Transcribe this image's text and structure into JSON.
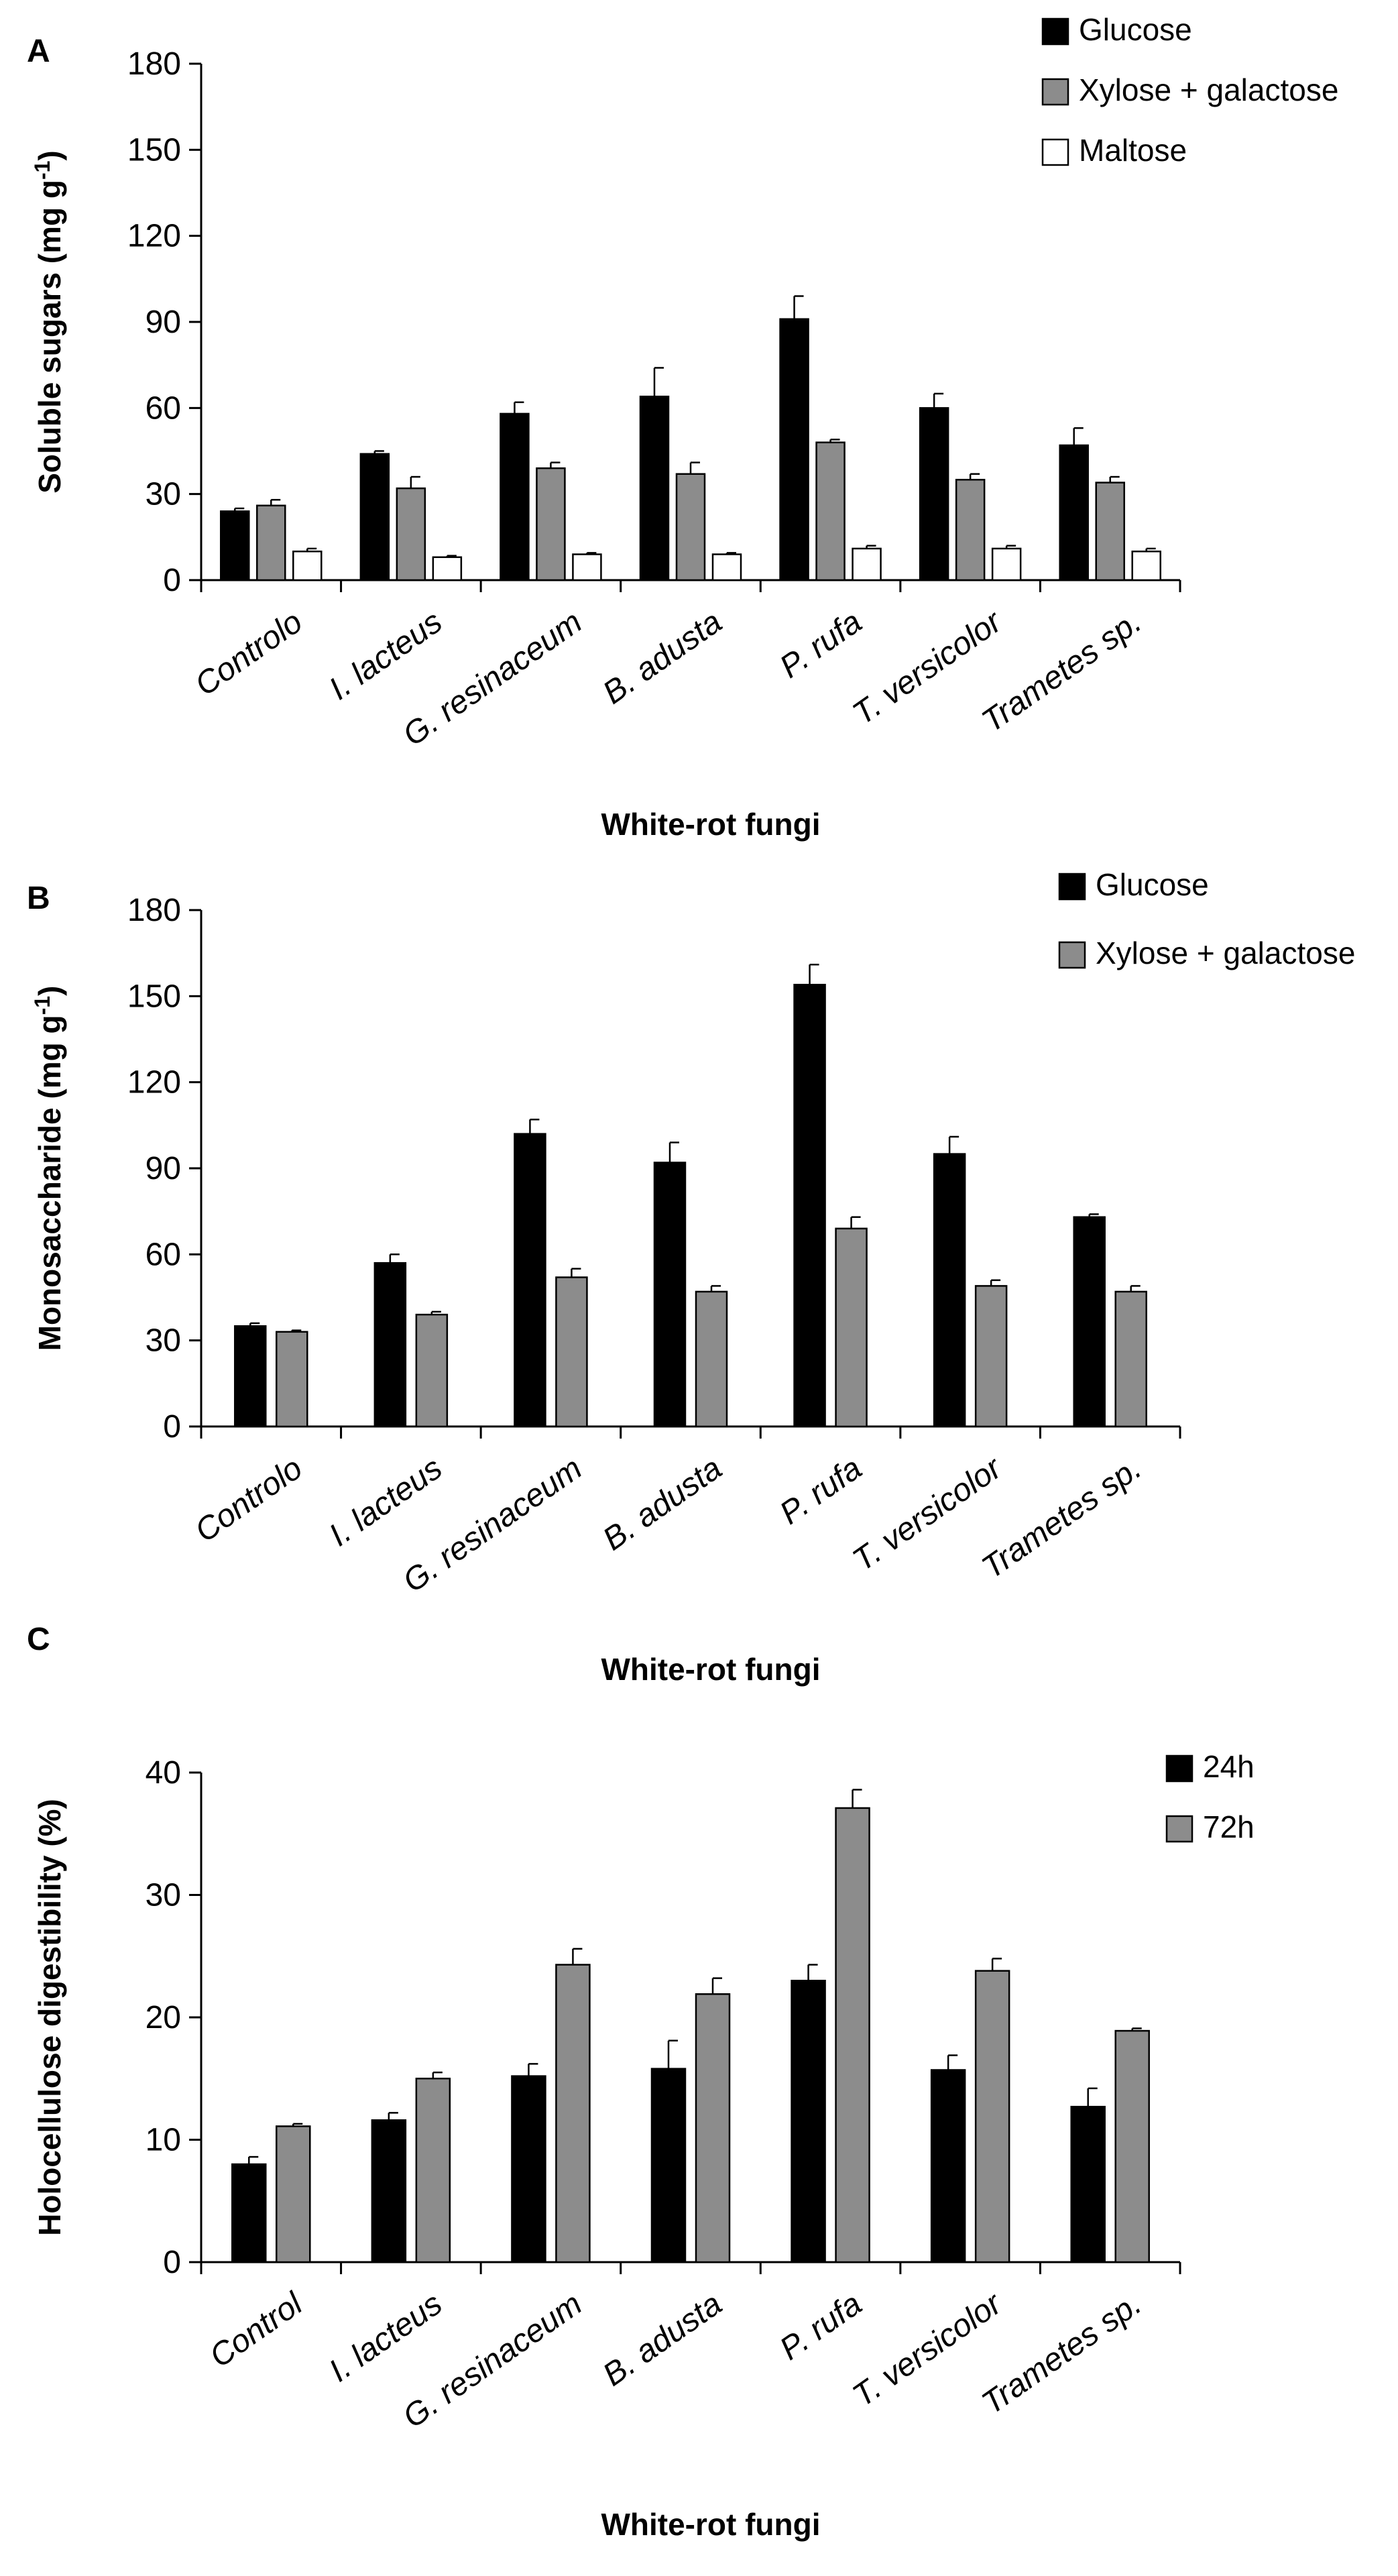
{
  "chart_data": [
    {
      "panel": "A",
      "type": "bar",
      "title": "",
      "xlabel": "White-rot fungi",
      "ylabel": "Soluble sugars (mg g-1)",
      "ylabel_main": "Soluble sugars (mg g",
      "ylabel_sup": "-1",
      "ylabel_end": ")",
      "ylim": [
        0,
        180
      ],
      "yticks": [
        0,
        30,
        60,
        90,
        120,
        150,
        180
      ],
      "categories": [
        "Controlo",
        "I. lacteus",
        "G. resinaceum",
        "B. adusta",
        "P. rufa",
        "T. versicolor",
        "Trametes sp."
      ],
      "series": [
        {
          "name": "Glucose",
          "color": "#000000",
          "values": [
            24,
            44,
            58,
            64,
            91,
            60,
            47
          ],
          "errors": [
            1,
            1,
            4,
            10,
            8,
            5,
            6
          ]
        },
        {
          "name": "Xylose + galactose",
          "color": "#8c8c8c",
          "values": [
            26,
            32,
            39,
            37,
            48,
            35,
            34
          ],
          "errors": [
            2,
            4,
            2,
            4,
            1,
            2,
            2
          ]
        },
        {
          "name": "Maltose",
          "color": "#ffffff",
          "values": [
            10,
            8,
            9,
            9,
            11,
            11,
            10
          ],
          "errors": [
            1,
            0.5,
            0.5,
            0.5,
            1,
            1,
            1
          ]
        }
      ],
      "legend": "top-right"
    },
    {
      "panel": "B",
      "type": "bar",
      "title": "",
      "xlabel": "White-rot fungi",
      "ylabel": "Monosaccharide (mg g-1)",
      "ylabel_main": "Monosaccharide (mg g",
      "ylabel_sup": "-1",
      "ylabel_end": ")",
      "ylim": [
        0,
        180
      ],
      "yticks": [
        0,
        30,
        60,
        90,
        120,
        150,
        180
      ],
      "categories": [
        "Controlo",
        "I. lacteus",
        "G. resinaceum",
        "B. adusta",
        "P. rufa",
        "T. versicolor",
        "Trametes sp."
      ],
      "series": [
        {
          "name": "Glucose",
          "color": "#000000",
          "values": [
            35,
            57,
            102,
            92,
            154,
            95,
            73
          ],
          "errors": [
            1,
            3,
            5,
            7,
            7,
            6,
            1
          ]
        },
        {
          "name": "Xylose + galactose",
          "color": "#8c8c8c",
          "values": [
            33,
            39,
            52,
            47,
            69,
            49,
            47
          ],
          "errors": [
            0.5,
            1,
            3,
            2,
            4,
            2,
            2
          ]
        }
      ],
      "legend": "top-right"
    },
    {
      "panel": "C",
      "type": "bar",
      "title": "",
      "xlabel": "White-rot fungi",
      "ylabel": "Holocellulose digestibility (%)",
      "ylabel_main": "Holocellulose digestibility (%)",
      "ylabel_sup": "",
      "ylabel_end": "",
      "ylim": [
        0,
        40
      ],
      "yticks": [
        0,
        10,
        20,
        30,
        40
      ],
      "categories": [
        "Control",
        "I. lacteus",
        "G. resinaceum",
        "B. adusta",
        "P. rufa",
        "T. versicolor",
        "Trametes sp."
      ],
      "series": [
        {
          "name": "24h",
          "color": "#000000",
          "values": [
            8,
            11.6,
            15.2,
            15.8,
            23,
            15.7,
            12.7
          ],
          "errors": [
            0.6,
            0.6,
            1,
            2.3,
            1.3,
            1.2,
            1.5
          ]
        },
        {
          "name": "72h",
          "color": "#8c8c8c",
          "values": [
            11.1,
            15,
            24.3,
            21.9,
            37.1,
            23.8,
            18.9
          ],
          "errors": [
            0.2,
            0.5,
            1.3,
            1.3,
            1.5,
            1,
            0.2
          ]
        }
      ],
      "legend": "top-right"
    }
  ]
}
